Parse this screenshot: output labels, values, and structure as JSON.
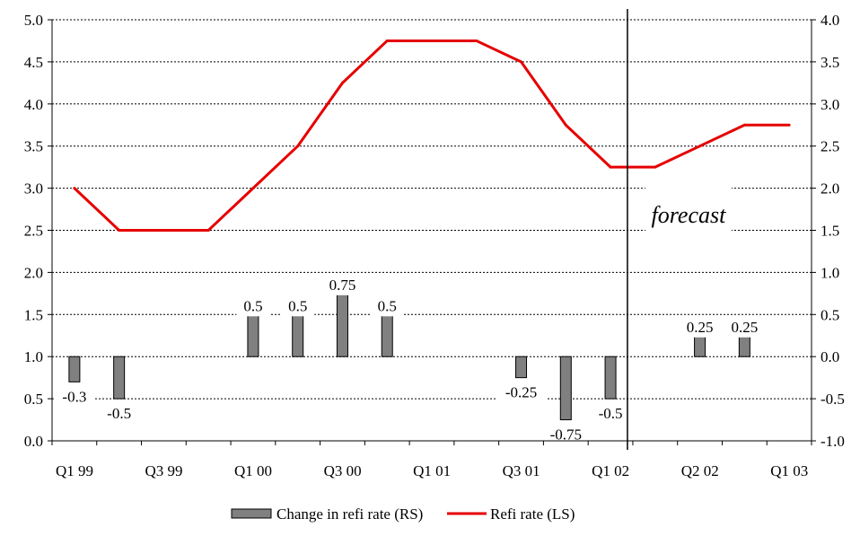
{
  "chart_data": {
    "type": "bar",
    "title": "",
    "categories": [
      "Q1 99",
      "Q2 99",
      "Q3 99",
      "Q4 99",
      "Q1 00",
      "Q2 00",
      "Q3 00",
      "Q4 00",
      "Q1 01",
      "Q2 01",
      "Q3 01",
      "Q4 01",
      "Q1 02",
      "Q2 02",
      "Q3 02",
      "Q4 02",
      "Q1 03"
    ],
    "x_tick_labels": [
      "Q1 99",
      "Q3 99",
      "Q1 00",
      "Q3 00",
      "Q1 01",
      "Q3 01",
      "Q1 02",
      "Q2 02",
      "Q1 03"
    ],
    "left_axis": {
      "range": [
        0,
        5
      ],
      "ticks": [
        "0.0",
        "0.5",
        "1.0",
        "1.5",
        "2.0",
        "2.5",
        "3.0",
        "3.5",
        "4.0",
        "4.5",
        "5.0"
      ]
    },
    "right_axis": {
      "range": [
        -1,
        4
      ],
      "ticks": [
        "-1.0",
        "-0.5",
        "0.0",
        "0.5",
        "1.0",
        "1.5",
        "2.0",
        "2.5",
        "3.0",
        "3.5",
        "4.0"
      ]
    },
    "grid": "horizontal, dotted",
    "legend_position": "bottom-center",
    "series": [
      {
        "name": "Change in refi rate (RS)",
        "type": "bar",
        "axis": "right",
        "color": "#808080",
        "points": [
          {
            "x": "Q1 99",
            "value": -0.3,
            "label": "-0.3"
          },
          {
            "x": "Q2 99",
            "value": -0.5,
            "label": "-0.5"
          },
          {
            "x": "Q1 00",
            "value": 0.5,
            "label": "0.5"
          },
          {
            "x": "Q2 00",
            "value": 0.5,
            "label": "0.5"
          },
          {
            "x": "Q3 00",
            "value": 0.75,
            "label": "0.75"
          },
          {
            "x": "Q4 00",
            "value": 0.5,
            "label": "0.5"
          },
          {
            "x": "Q3 01",
            "value": -0.25,
            "label": "-0.25"
          },
          {
            "x": "Q4 01",
            "value": -0.75,
            "label": "-0.75"
          },
          {
            "x": "Q1 02",
            "value": -0.5,
            "label": "-0.5"
          },
          {
            "x": "Q3 02",
            "value": 0.25,
            "label": "0.25"
          },
          {
            "x": "Q4 02",
            "value": 0.25,
            "label": "0.25"
          }
        ]
      },
      {
        "name": "Refi rate (LS)",
        "type": "line",
        "axis": "left",
        "color": "#e60000",
        "points": [
          {
            "x": "Q1 99",
            "value": 3.0
          },
          {
            "x": "Q2 99",
            "value": 2.5
          },
          {
            "x": "Q3 99",
            "value": 2.5
          },
          {
            "x": "Q4 99",
            "value": 2.5
          },
          {
            "x": "Q1 00",
            "value": 3.0
          },
          {
            "x": "Q2 00",
            "value": 3.5
          },
          {
            "x": "Q3 00",
            "value": 4.25
          },
          {
            "x": "Q4 00",
            "value": 4.75
          },
          {
            "x": "Q1 01",
            "value": 4.75
          },
          {
            "x": "Q2 01",
            "value": 4.75
          },
          {
            "x": "Q3 01",
            "value": 4.5
          },
          {
            "x": "Q4 01",
            "value": 3.75
          },
          {
            "x": "Q1 02",
            "value": 3.25
          },
          {
            "x": "Q2 02",
            "value": 3.25
          },
          {
            "x": "Q3 02",
            "value": 3.5
          },
          {
            "x": "Q4 02",
            "value": 3.75
          },
          {
            "x": "Q1 03",
            "value": 3.75
          }
        ]
      }
    ],
    "annotation": {
      "text": "forecast"
    },
    "forecast_divider_after": "Q1 02"
  }
}
